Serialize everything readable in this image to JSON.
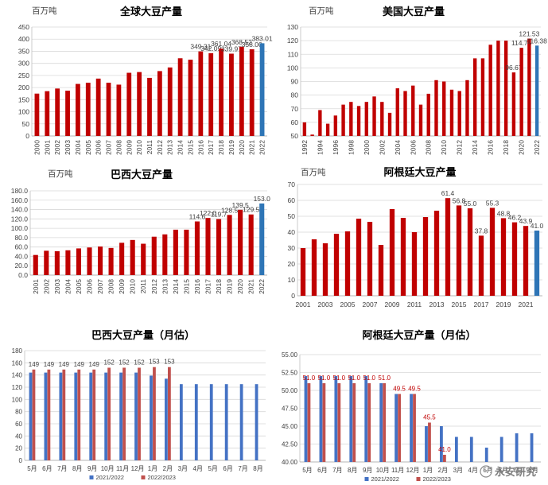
{
  "chart_data": [
    {
      "type": "bar",
      "title": "全球大豆产量",
      "unit_label": "百万吨",
      "ylim": [
        0,
        450
      ],
      "ytick_step": 50,
      "categories": [
        "2000",
        "2001",
        "2002",
        "2003",
        "2004",
        "2005",
        "2006",
        "2007",
        "2008",
        "2009",
        "2010",
        "2011",
        "2012",
        "2013",
        "2014",
        "2015",
        "2016",
        "2017",
        "2018",
        "2019",
        "2020",
        "2021",
        "2022"
      ],
      "values": [
        175,
        185,
        196,
        187,
        215,
        220,
        237,
        220,
        212,
        261,
        264,
        240,
        268,
        283,
        321,
        315,
        349.31,
        342.09,
        361.04,
        339.97,
        368.52,
        358.0,
        383.01
      ],
      "labels": {
        "16": "349.31",
        "17": "342.09",
        "18": "361.04",
        "19": "339.97",
        "20": "368.52",
        "21": "358.00",
        "22": "383.01"
      },
      "highlight_last": true,
      "bar_color": "#C00000",
      "highlight_color": "#2E75B6"
    },
    {
      "type": "bar",
      "title": "美国大豆产量",
      "unit_label": "百万吨",
      "ylim": [
        50,
        130
      ],
      "ytick_step": 10,
      "categories": [
        "1992",
        "1993",
        "1994",
        "1995",
        "1996",
        "1997",
        "1998",
        "1999",
        "2000",
        "2001",
        "2002",
        "2003",
        "2004",
        "2005",
        "2006",
        "2007",
        "2008",
        "2009",
        "2010",
        "2011",
        "2012",
        "2013",
        "2014",
        "2015",
        "2016",
        "2017",
        "2018",
        "2019",
        "2020",
        "2021",
        "2022"
      ],
      "xtick_every": 2,
      "values": [
        60,
        51,
        69,
        59,
        65,
        73,
        75,
        72,
        75,
        79,
        75,
        67,
        85,
        83,
        87,
        73,
        81,
        91,
        90,
        84,
        83,
        91,
        107,
        107,
        117,
        120,
        120,
        96.67,
        114.75,
        121.53,
        116.38
      ],
      "labels": {
        "27": "96.67",
        "28": "114.75",
        "29": "121.53",
        "30": "116.38"
      },
      "highlight_last": true,
      "bar_color": "#C00000",
      "highlight_color": "#2E75B6"
    },
    {
      "type": "bar",
      "title": "巴西大豆产量",
      "unit_label": "百万吨",
      "ylim": [
        0,
        180
      ],
      "ytick_step": 20,
      "tick_decimals": 1,
      "categories": [
        "2001",
        "2002",
        "2003",
        "2004",
        "2005",
        "2006",
        "2007",
        "2008",
        "2009",
        "2010",
        "2011",
        "2012",
        "2013",
        "2014",
        "2015",
        "2016",
        "2017",
        "2018",
        "2019",
        "2020",
        "2021",
        "2022"
      ],
      "values": [
        43,
        52,
        51,
        53,
        57,
        59,
        61,
        58,
        69,
        75,
        67,
        82,
        87,
        97,
        97,
        114.6,
        122.0,
        119.7,
        128.5,
        139.5,
        129.5,
        153.0
      ],
      "labels": {
        "15": "114.6",
        "16": "122.0",
        "17": "119.7",
        "18": "128.5",
        "19": "139.5",
        "20": "129.5",
        "21": "153.0"
      },
      "highlight_last": true,
      "bar_color": "#C00000",
      "highlight_color": "#2E75B6"
    },
    {
      "type": "bar",
      "title": "阿根廷大豆产量",
      "unit_label": "百万吨",
      "ylim": [
        0,
        70
      ],
      "ytick_step": 10,
      "categories": [
        "2001",
        "2002",
        "2003",
        "2004",
        "2005",
        "2006",
        "2007",
        "2008",
        "2009",
        "2010",
        "2011",
        "2012",
        "2013",
        "2014",
        "2015",
        "2016",
        "2017",
        "2018",
        "2019",
        "2020",
        "2021",
        "2022"
      ],
      "xtick_every": 2,
      "values": [
        30,
        35.5,
        33,
        39,
        40.5,
        48.5,
        46.5,
        32,
        54.5,
        49,
        40,
        49.5,
        53.5,
        61.4,
        56.8,
        55.0,
        37.8,
        55.3,
        48.8,
        46.2,
        43.9,
        41.0
      ],
      "labels": {
        "13": "61.4",
        "14": "56.8",
        "15": "55.0",
        "16": "37.8",
        "17": "55.3",
        "18": "48.8",
        "19": "46.2",
        "20": "43.9",
        "21": "41.0"
      },
      "highlight_last": true,
      "bar_color": "#C00000",
      "highlight_color": "#2E75B6"
    },
    {
      "type": "bar",
      "title": "巴西大豆产量（月估）",
      "ylim": [
        0,
        180
      ],
      "ytick_step": 20,
      "categories": [
        "5月",
        "6月",
        "7月",
        "8月",
        "9月",
        "10月",
        "11月",
        "12月",
        "1月",
        "2月",
        "3月",
        "4月",
        "5月",
        "6月",
        "7月",
        "8月"
      ],
      "series": [
        {
          "name": "2021/2022",
          "color": "#4472C4",
          "values": [
            144,
            144,
            144,
            144,
            144,
            144,
            144,
            144,
            139,
            134,
            125,
            125,
            125,
            125,
            125,
            125
          ]
        },
        {
          "name": "2022/2023",
          "color": "#C0504D",
          "values": [
            149,
            149,
            149,
            149,
            149,
            152,
            152,
            152,
            153,
            153,
            null,
            null,
            null,
            null,
            null,
            null
          ]
        }
      ],
      "series_labels": [
        {
          "series": 1,
          "labels": [
            "149",
            "149",
            "149",
            "149",
            "149",
            "152",
            "152",
            "152",
            "153",
            "153"
          ]
        }
      ],
      "legend": "bottom"
    },
    {
      "type": "bar",
      "title": "阿根廷大豆产量（月估）",
      "ylim": [
        40,
        55
      ],
      "ytick_step": 2.5,
      "tick_decimals": 2,
      "categories": [
        "5月",
        "6月",
        "7月",
        "8月",
        "9月",
        "10月",
        "11月",
        "12月",
        "1月",
        "2月",
        "3月",
        "4月",
        "5月",
        "6月",
        "7月",
        "8月"
      ],
      "series": [
        {
          "name": "2021/2022",
          "color": "#4472C4",
          "values": [
            52,
            52,
            52,
            52,
            52,
            51,
            49.5,
            49.5,
            45,
            45,
            43.5,
            43.5,
            42,
            43.5,
            44,
            44
          ]
        },
        {
          "name": "2022/2023",
          "color": "#C0504D",
          "values": [
            51,
            51,
            51,
            51,
            51,
            51,
            49.5,
            49.5,
            45.5,
            41,
            null,
            null,
            null,
            null,
            null,
            null
          ]
        }
      ],
      "series_labels": [
        {
          "series": 1,
          "labels": [
            "51.0",
            "51.0",
            "51.0",
            "51.0",
            "51.0",
            "51.0",
            "49.5",
            "49.5",
            "45.5",
            "41.0"
          ]
        }
      ],
      "legend": "bottom"
    }
  ],
  "watermark": "永安研究"
}
